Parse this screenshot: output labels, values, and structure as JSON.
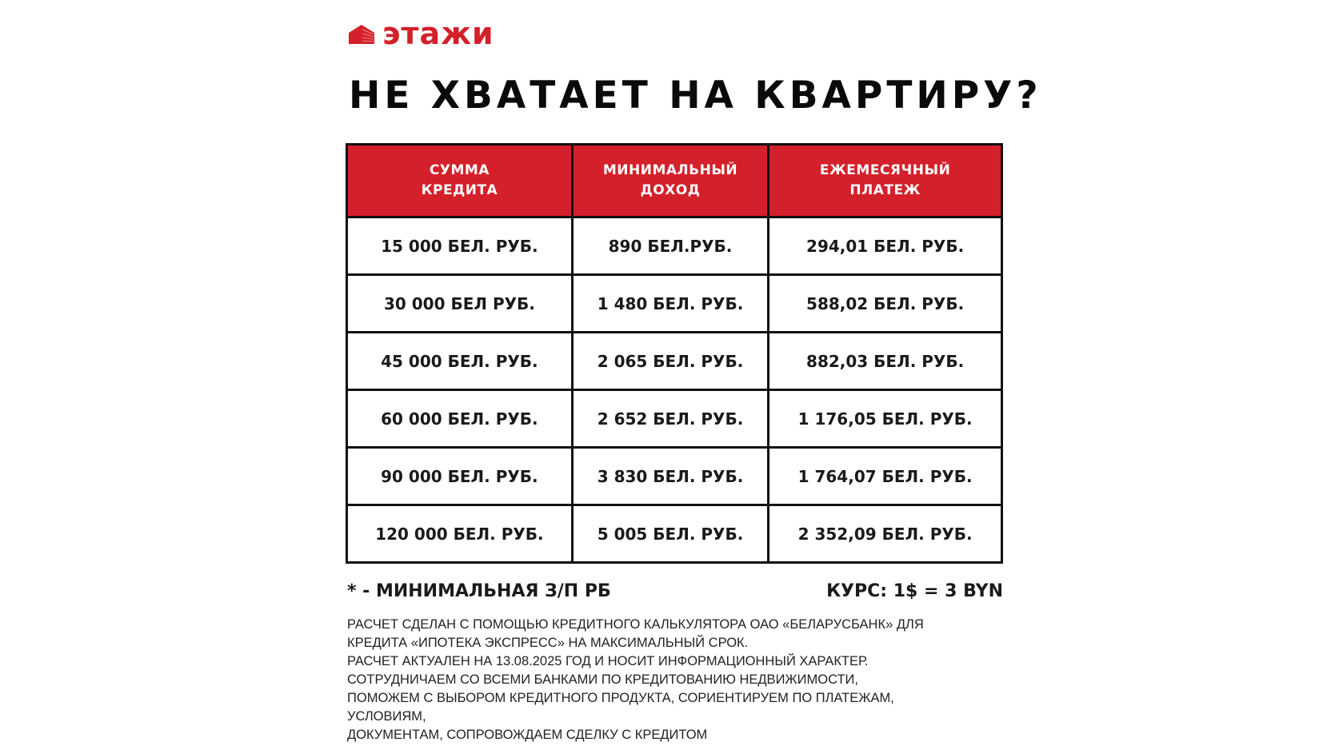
{
  "brand": {
    "name": "этажи",
    "color": "#d4202a"
  },
  "title": "НЕ ХВАТАЕТ НА КВАРТИРУ?",
  "table": {
    "headers": [
      "СУММА\nКРЕДИТА",
      "МИНИМАЛЬНЫЙ\nДОХОД",
      "ЕЖЕМЕСЯЧНЫЙ\nПЛАТЕЖ"
    ],
    "rows": [
      [
        "15 000 БЕЛ. РУБ.",
        "890 БЕЛ.РУБ.",
        "294,01 БЕЛ. РУБ."
      ],
      [
        "30 000 БЕЛ РУБ.",
        "1 480 БЕЛ. РУБ.",
        "588,02 БЕЛ. РУБ."
      ],
      [
        "45 000 БЕЛ. РУБ.",
        "2 065 БЕЛ. РУБ.",
        "882,03 БЕЛ. РУБ."
      ],
      [
        "60 000 БЕЛ. РУБ.",
        "2 652 БЕЛ. РУБ.",
        "1 176,05 БЕЛ. РУБ."
      ],
      [
        "90 000 БЕЛ. РУБ.",
        "3 830 БЕЛ. РУБ.",
        "1 764,07 БЕЛ. РУБ."
      ],
      [
        "120 000 БЕЛ. РУБ.",
        "5 005 БЕЛ. РУБ.",
        "2 352,09 БЕЛ. РУБ."
      ]
    ]
  },
  "notes": {
    "left": "* - МИНИМАЛЬНАЯ З/П РБ",
    "right": "КУРС: 1$ = 3 BYN"
  },
  "disclaimer": [
    "РАСЧЕТ СДЕЛАН С ПОМОЩЬЮ КРЕДИТНОГО КАЛЬКУЛЯТОРА ОАО «БЕЛАРУСБАНК» ДЛЯ",
    "КРЕДИТА «ИПОТЕКА ЭКСПРЕСС» НА МАКСИМАЛЬНЫЙ СРОК.",
    "РАСЧЕТ АКТУАЛЕН НА 13.08.2025 ГОД И НОСИТ ИНФОРМАЦИОННЫЙ ХАРАКТЕР.",
    "СОТРУДНИЧАЕМ СО ВСЕМИ БАНКАМИ ПО КРЕДИТОВАНИЮ НЕДВИЖИМОСТИ,",
    "ПОМОЖЕМ С ВЫБОРОМ КРЕДИТНОГО ПРОДУКТА, СОРИЕНТИРУЕМ ПО ПЛАТЕЖАМ,",
    "УСЛОВИЯМ,",
    "ДОКУМЕНТАМ, СОПРОВОЖДАЕМ СДЕЛКУ С КРЕДИТОМ"
  ]
}
